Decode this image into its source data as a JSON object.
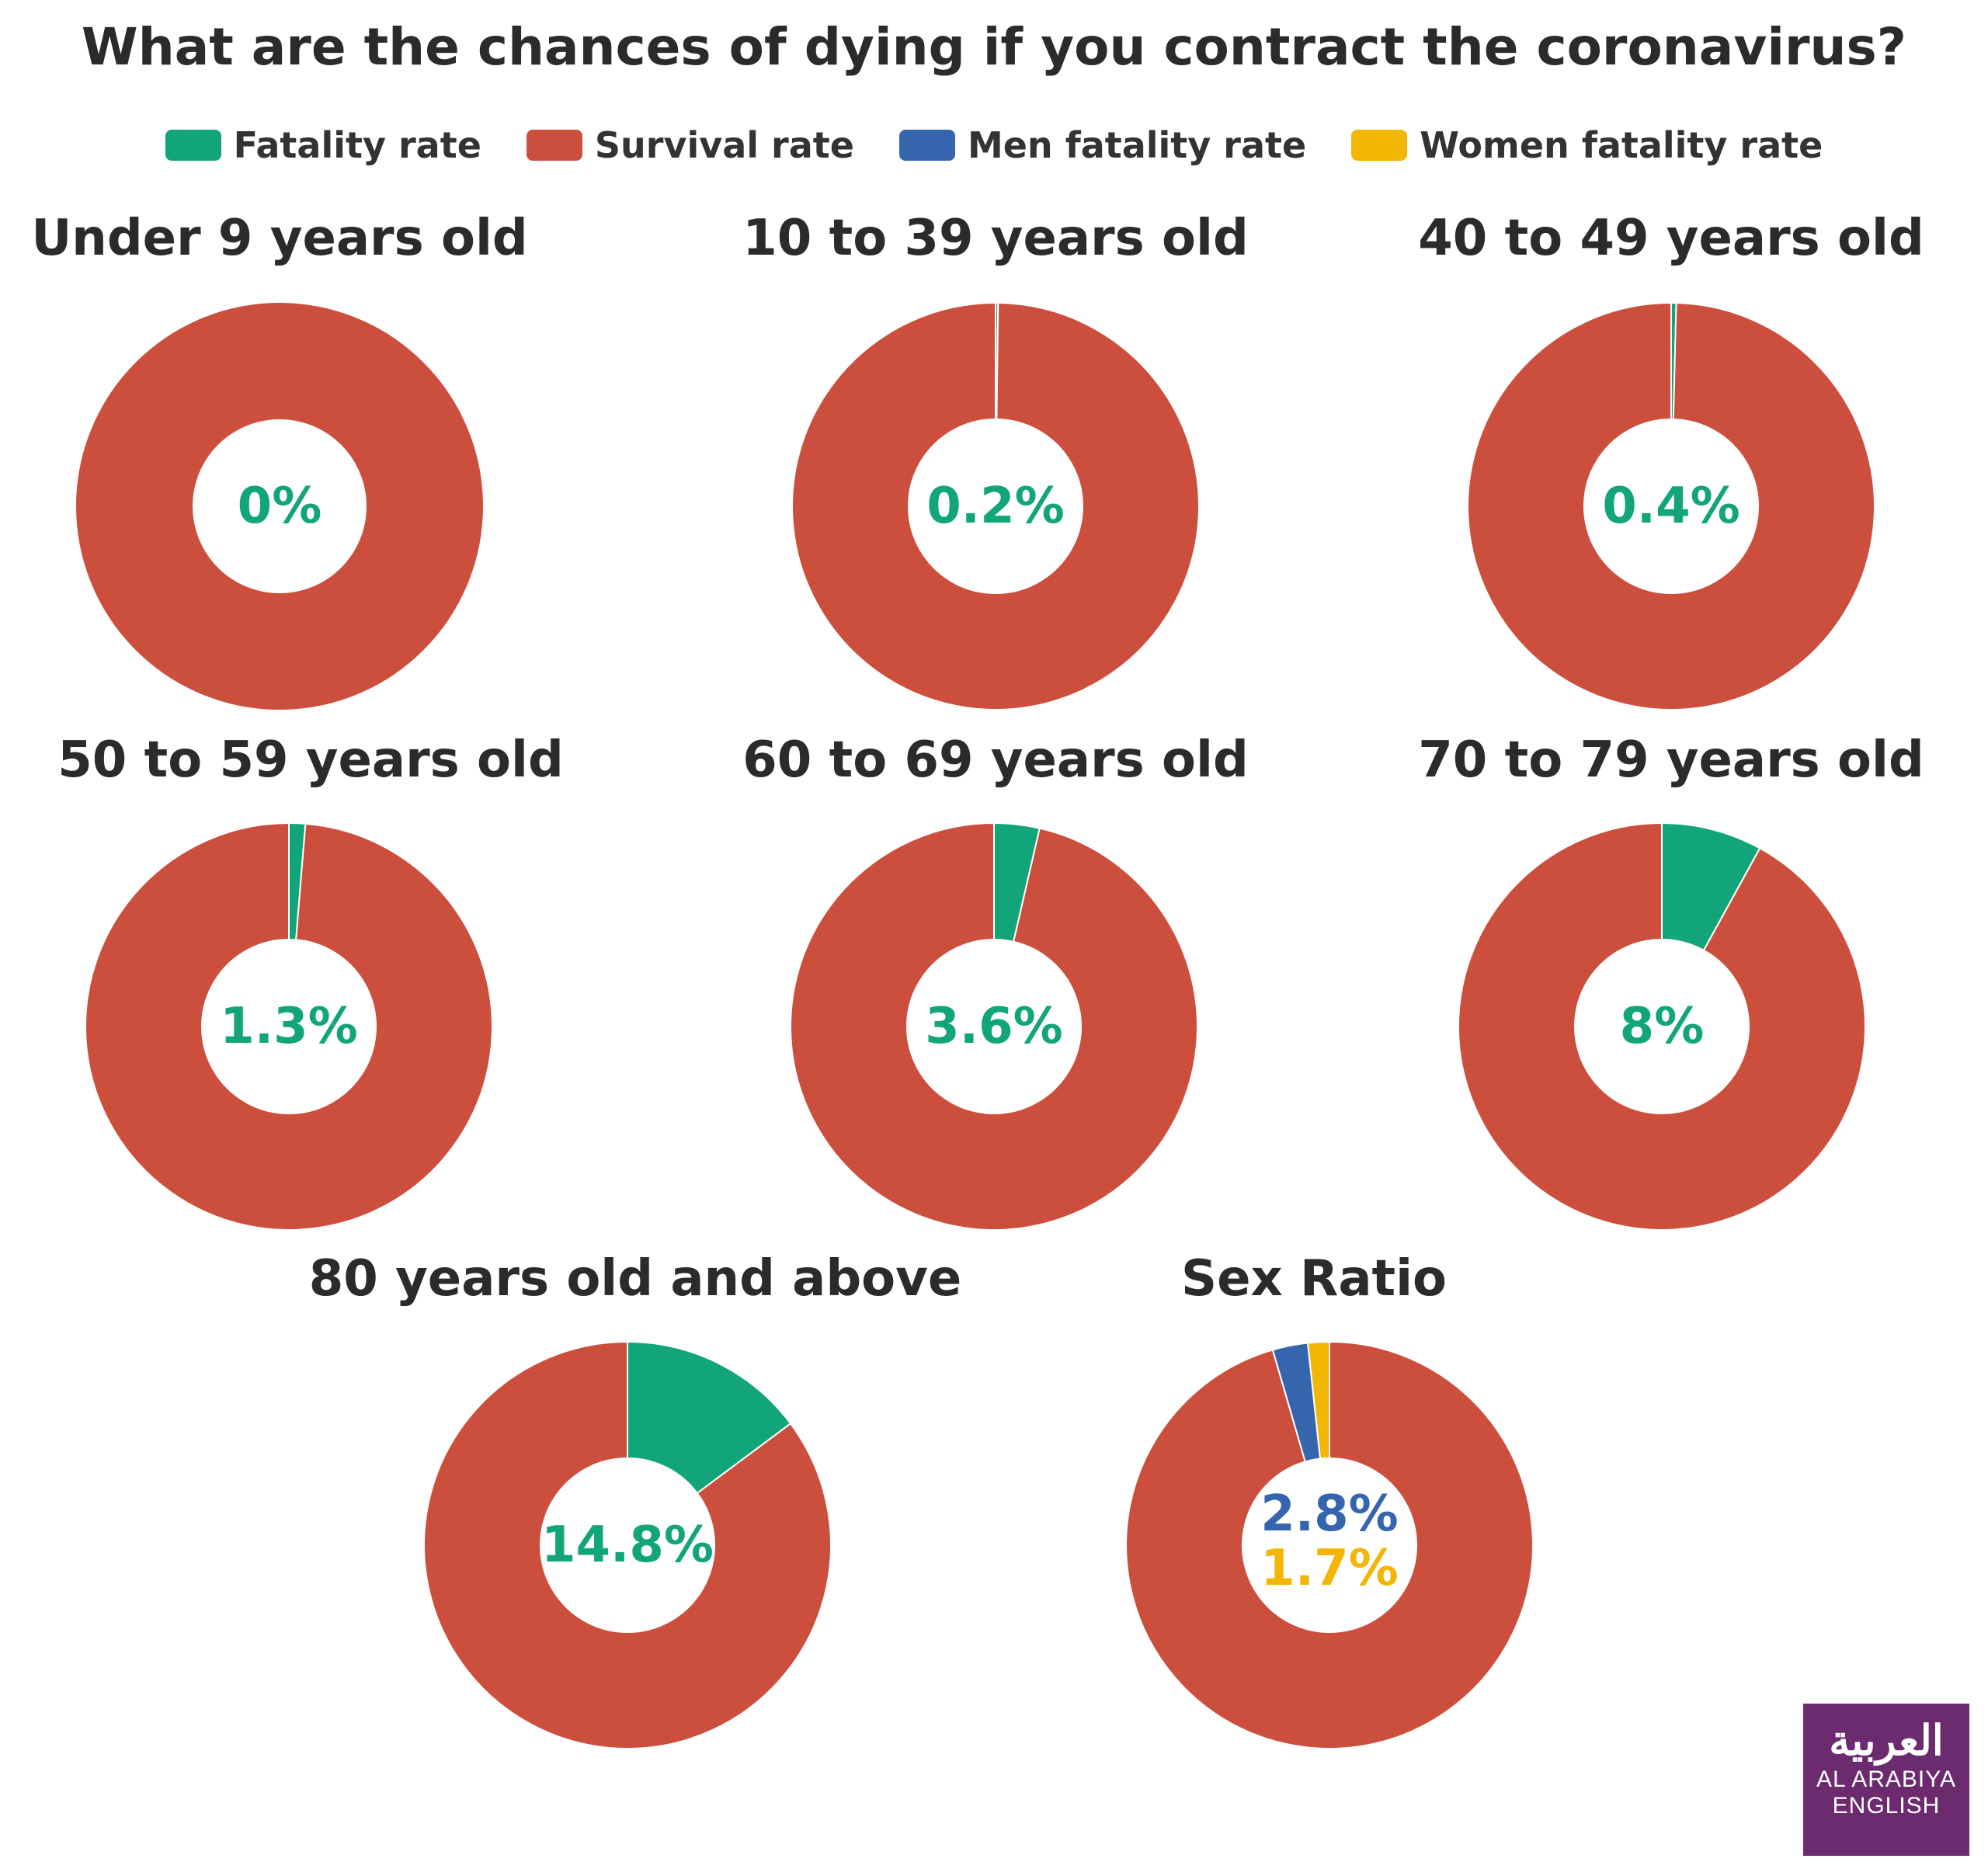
{
  "title": "What are the chances of dying if you contract the coronavirus?",
  "colors": {
    "fatality": "#13a57a",
    "survival": "#cc4f3e",
    "men": "#3566ad",
    "women": "#f2b705"
  },
  "legend": [
    {
      "label": "Fatality rate",
      "color": "#13a57a"
    },
    {
      "label": "Survival rate",
      "color": "#cc4f3e"
    },
    {
      "label": "Men fatality rate",
      "color": "#3566ad"
    },
    {
      "label": "Women fatality rate",
      "color": "#f2b705"
    }
  ],
  "chart_data": [
    {
      "type": "pie",
      "title": "Under 9 years old",
      "labels": [
        "Fatality rate",
        "Survival rate"
      ],
      "values": [
        0,
        100
      ],
      "center_labels": [
        "0%"
      ]
    },
    {
      "type": "pie",
      "title": "10 to 39 years old",
      "labels": [
        "Fatality rate",
        "Survival rate"
      ],
      "values": [
        0.2,
        99.8
      ],
      "center_labels": [
        "0.2%"
      ]
    },
    {
      "type": "pie",
      "title": "40 to 49 years old",
      "labels": [
        "Fatality rate",
        "Survival rate"
      ],
      "values": [
        0.4,
        99.6
      ],
      "center_labels": [
        "0.4%"
      ]
    },
    {
      "type": "pie",
      "title": "50 to 59 years old",
      "labels": [
        "Fatality rate",
        "Survival rate"
      ],
      "values": [
        1.3,
        98.7
      ],
      "center_labels": [
        "1.3%"
      ]
    },
    {
      "type": "pie",
      "title": "60 to 69 years old",
      "labels": [
        "Fatality rate",
        "Survival rate"
      ],
      "values": [
        3.6,
        96.4
      ],
      "center_labels": [
        "3.6%"
      ]
    },
    {
      "type": "pie",
      "title": "70 to 79 years old",
      "labels": [
        "Fatality rate",
        "Survival rate"
      ],
      "values": [
        8,
        92
      ],
      "center_labels": [
        "8%"
      ]
    },
    {
      "type": "pie",
      "title": "80 years old and above",
      "labels": [
        "Fatality rate",
        "Survival rate"
      ],
      "values": [
        14.8,
        85.2
      ],
      "center_labels": [
        "14.8%"
      ]
    },
    {
      "type": "pie",
      "title": "Sex Ratio",
      "labels": [
        "Women fatality rate",
        "Men fatality rate",
        "Survival rate"
      ],
      "values": [
        1.7,
        2.8,
        95.5
      ],
      "center_labels": [
        "2.8%",
        "1.7%"
      ]
    }
  ],
  "logo": {
    "arabic": "العربية",
    "line1": "AL ARABIYA",
    "line2": "ENGLISH"
  }
}
